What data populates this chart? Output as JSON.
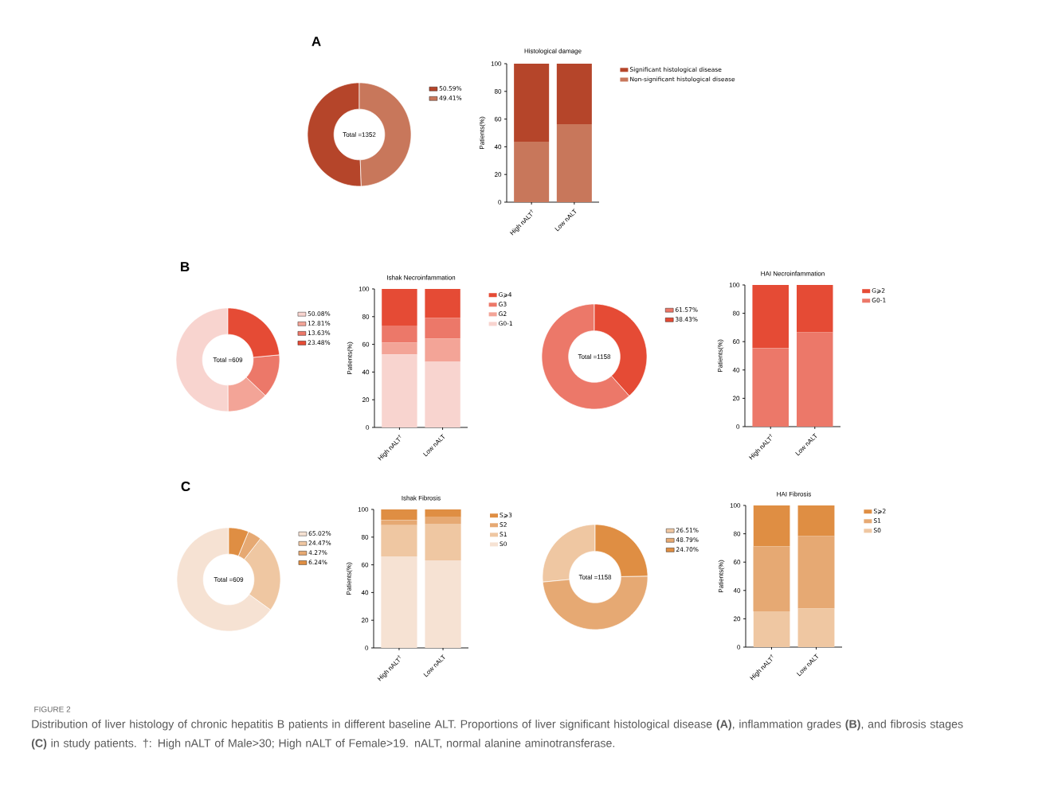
{
  "chart_data": [
    {
      "type": "donut",
      "title": "A",
      "categories": [
        "50.59%",
        "49.41%"
      ],
      "values": [
        50.59,
        49.41
      ],
      "colors": [
        "#b5452a",
        "#c8775b"
      ],
      "annotations": [
        "Total =1352"
      ],
      "legend": "right"
    },
    {
      "type": "bar",
      "stacked": true,
      "title": "Histological damage",
      "ylabel": "Patients(%)",
      "categories": [
        "High nALT$^{†}$",
        "Low nALT"
      ],
      "series": [
        {
          "name": "Non-significant histological disease",
          "color": "#c8775b",
          "values": [
            43.7,
            56.3
          ]
        },
        {
          "name": "Significant histological disease",
          "color": "#b5452a",
          "values": [
            56.3,
            43.7
          ]
        }
      ],
      "ylim": [
        0,
        100
      ],
      "yticks": [
        0,
        20,
        40,
        60,
        80,
        100
      ],
      "legend": "right"
    },
    {
      "type": "donut",
      "title": "B",
      "categories": [
        "50.08%",
        "12.81%",
        "13.63%",
        "23.48%"
      ],
      "values": [
        50.08,
        12.81,
        13.63,
        23.48
      ],
      "colors": [
        "#f8d4cf",
        "#f3a497",
        "#ec7869",
        "#e54b35"
      ],
      "annotations": [
        "Total =609"
      ],
      "legend": "right"
    },
    {
      "type": "bar",
      "stacked": true,
      "title": "Ishak Necroinfammation",
      "ylabel": "Patients(%)",
      "categories": [
        "High nALT$^{†}$",
        "Low nALT"
      ],
      "series": [
        {
          "name": "G0-1",
          "color": "#f8d4cf",
          "values": [
            52.8,
            47.4
          ]
        },
        {
          "name": "G2",
          "color": "#f3a497",
          "values": [
            8.6,
            16.8
          ]
        },
        {
          "name": "G3",
          "color": "#ec7869",
          "values": [
            12.2,
            15.0
          ]
        },
        {
          "name": "G⩾4",
          "color": "#e54b35",
          "values": [
            26.4,
            20.8
          ]
        }
      ],
      "ylim": [
        0,
        100
      ],
      "yticks": [
        0,
        20,
        40,
        60,
        80,
        100
      ],
      "legend": "right"
    },
    {
      "type": "donut",
      "categories": [
        "61.57%",
        "38.43%"
      ],
      "values": [
        61.57,
        38.43
      ],
      "colors": [
        "#ec7869",
        "#e54b35"
      ],
      "annotations": [
        "Total =1158"
      ],
      "legend": "right"
    },
    {
      "type": "bar",
      "stacked": true,
      "title": "HAI Necroinfammation",
      "ylabel": "Patients(%)",
      "categories": [
        "High nALT$^{†}$",
        "Low nALT"
      ],
      "series": [
        {
          "name": "G0-1",
          "color": "#ec7869",
          "values": [
            55.3,
            66.6
          ]
        },
        {
          "name": "G⩾2",
          "color": "#e54b35",
          "values": [
            44.7,
            33.4
          ]
        }
      ],
      "ylim": [
        0,
        100
      ],
      "yticks": [
        0,
        20,
        40,
        60,
        80,
        100
      ],
      "legend": "right"
    },
    {
      "type": "donut",
      "title": "C",
      "categories": [
        "65.02%",
        "24.47%",
        "4.27%",
        "6.24%"
      ],
      "values": [
        65.02,
        24.47,
        4.27,
        6.24
      ],
      "colors": [
        "#f6e2d3",
        "#efc7a2",
        "#e6a973",
        "#df8e43"
      ],
      "annotations": [
        "Total =609"
      ],
      "legend": "right"
    },
    {
      "type": "bar",
      "stacked": true,
      "title": "Ishak Fibrosis",
      "ylabel": "Patients(%)",
      "categories": [
        "High nALT$^{†}$",
        "Low nALT"
      ],
      "series": [
        {
          "name": "S0",
          "color": "#f6e2d3",
          "values": [
            66.1,
            63.2
          ]
        },
        {
          "name": "S1",
          "color": "#efc7a2",
          "values": [
            22.6,
            26.5
          ]
        },
        {
          "name": "S2",
          "color": "#e6a973",
          "values": [
            3.6,
            4.7
          ]
        },
        {
          "name": "S⩾3",
          "color": "#df8e43",
          "values": [
            7.7,
            5.6
          ]
        }
      ],
      "ylim": [
        0,
        100
      ],
      "yticks": [
        0,
        20,
        40,
        60,
        80,
        100
      ],
      "legend": "right"
    },
    {
      "type": "donut",
      "categories": [
        "26.51%",
        "48.79%",
        "24.70%"
      ],
      "values": [
        26.51,
        48.79,
        24.7
      ],
      "colors": [
        "#efc7a2",
        "#e6a973",
        "#df8e43"
      ],
      "annotations": [
        "Total =1158"
      ],
      "legend": "right"
    },
    {
      "type": "bar",
      "stacked": true,
      "title": "HAI Fibrosis",
      "ylabel": "Patients(%)",
      "categories": [
        "High nALT$^{†}$",
        "Low nALT"
      ],
      "series": [
        {
          "name": "S0",
          "color": "#efc7a2",
          "values": [
            25.3,
            27.2
          ]
        },
        {
          "name": "S1",
          "color": "#e6a973",
          "values": [
            45.9,
            51.3
          ]
        },
        {
          "name": "S⩾2",
          "color": "#df8e43",
          "values": [
            28.8,
            21.5
          ]
        }
      ],
      "ylim": [
        0,
        100
      ],
      "yticks": [
        0,
        20,
        40,
        60,
        80,
        100
      ],
      "legend": "right",
      "annotations": [
        "FIGURE 2",
        "Distribution of liver histology of chronic hepatitis B patients in different baseline ALT. Proportions of liver significant histological disease **(A)**, inflammation grades **(B)**, and fibrosis stages **(C)** in study patients. †: High nALT of Male>30; High nALT of Female>19. nALT, normal alanine aminotransferase."
      ]
    }
  ]
}
